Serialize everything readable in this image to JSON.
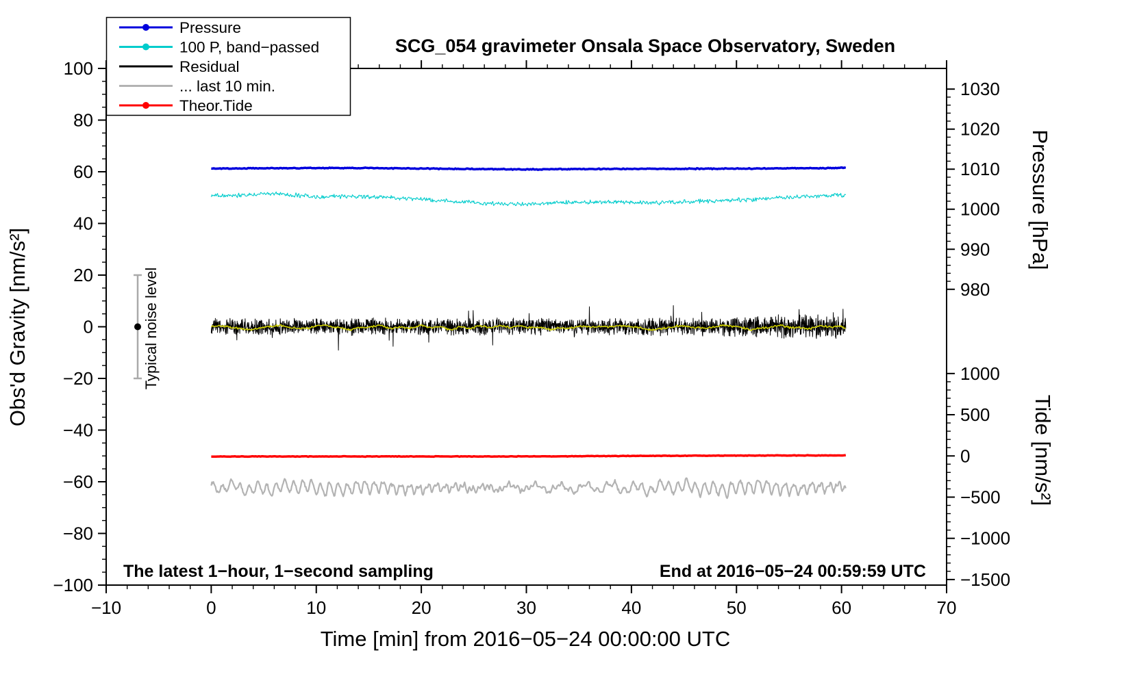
{
  "chart_data": {
    "type": "line",
    "title": "SCG_054 gravimeter Onsala Space Observatory, Sweden",
    "annotations": {
      "sampling": "The latest 1−hour, 1−second sampling",
      "end": "End at 2016−05−24 00:59:59 UTC"
    },
    "axes": {
      "x": {
        "label": "Time [min] from 2016−05−24 00:00:00 UTC",
        "min": -10,
        "max": 70,
        "ticks": [
          -10,
          0,
          10,
          20,
          30,
          40,
          50,
          60,
          70
        ],
        "minor_step": 2
      },
      "y_left": {
        "label": "Obs'd Gravity [nm/s²]",
        "min": -100,
        "max": 100,
        "ticks": [
          -100,
          -80,
          -60,
          -40,
          -20,
          0,
          20,
          40,
          60,
          80,
          100
        ],
        "minor_step": 5
      },
      "pressure": {
        "label": "Pressure [hPa]",
        "ticks": [
          1030,
          1020,
          1010,
          1000,
          990,
          980
        ],
        "minor_step": 2,
        "hpa_ref": 1010,
        "gravity_ref": 61,
        "gravity_per_hpa": 1.55
      },
      "tide": {
        "label": "Tide [nm/s²]",
        "ticks": [
          1000,
          500,
          0,
          -500,
          -1000,
          -1500
        ],
        "minor_step": 100,
        "tide_ref": 0,
        "gravity_ref": -50,
        "gravity_per_unit": 0.0319
      }
    },
    "x_range_data": [
      0,
      60.4
    ],
    "noise_marker": {
      "x": -7,
      "center": 0,
      "half_range": 20,
      "label": "Typical noise level"
    },
    "legend": {
      "items": [
        {
          "label": "Pressure",
          "color": "#0000dd",
          "marker": true
        },
        {
          "label": "100 P, band−passed",
          "color": "#00cccc",
          "marker": true
        },
        {
          "label": "Residual",
          "color": "#000000",
          "marker": false
        },
        {
          "label": "... last 10 min.",
          "color": "#b3b3b3",
          "marker": false
        },
        {
          "label": "Theor.Tide",
          "color": "#ff0000",
          "marker": true
        }
      ]
    },
    "series": [
      {
        "name": "last 10 min residual",
        "color": "#b3b3b3",
        "width": 2.2,
        "samples": 900,
        "trend": [
          [
            0,
            -62.3
          ],
          [
            60.4,
            -62.3
          ]
        ],
        "waves": [
          [
            0.85,
            1.9
          ],
          [
            2.4,
            1.1
          ],
          [
            0.42,
            0.7
          ],
          [
            7.3,
            0.5
          ]
        ],
        "noise": 0.35
      },
      {
        "name": "Theor.Tide",
        "color": "#ff0000",
        "width": 3.5,
        "samples": 400,
        "trend": [
          [
            0,
            -50.2
          ],
          [
            30,
            -50.2
          ],
          [
            40,
            -50.0
          ],
          [
            55,
            -49.8
          ],
          [
            60.4,
            -49.8
          ]
        ],
        "noise": 0.07
      },
      {
        "name": "Pressure",
        "color": "#0000dd",
        "width": 3.5,
        "samples": 500,
        "trend": [
          [
            0,
            61.2
          ],
          [
            12,
            61.5
          ],
          [
            22,
            61.2
          ],
          [
            30,
            60.9
          ],
          [
            38,
            61.1
          ],
          [
            50,
            61.2
          ],
          [
            60.4,
            61.5
          ]
        ],
        "noise": 0.12
      },
      {
        "name": "100 P band-passed",
        "color": "#00cccc",
        "width": 1.1,
        "samples": 900,
        "trend": [
          [
            0,
            50.8
          ],
          [
            3,
            51.0
          ],
          [
            6,
            51.5
          ],
          [
            10,
            50.3
          ],
          [
            14,
            50.5
          ],
          [
            18,
            49.8
          ],
          [
            22,
            48.8
          ],
          [
            26,
            47.7
          ],
          [
            30,
            47.5
          ],
          [
            34,
            48.2
          ],
          [
            38,
            48.3
          ],
          [
            43,
            48.0
          ],
          [
            47,
            48.6
          ],
          [
            51,
            49.2
          ],
          [
            55,
            50.2
          ],
          [
            58,
            50.6
          ],
          [
            60.4,
            51.0
          ]
        ],
        "noise": 0.55
      },
      {
        "name": "Residual",
        "color": "#000000",
        "width": 1,
        "samples": 2600,
        "trend": [
          [
            0,
            0
          ],
          [
            60.4,
            0
          ]
        ],
        "noise": 2.0,
        "noise_growth": 0.5,
        "spike_prob": 0.02,
        "spike_amp": 3.5
      },
      {
        "name": "Residual smoothed",
        "color": "#cfd000",
        "width": 1.6,
        "samples": 700,
        "trend": [
          [
            0,
            -0.2
          ],
          [
            60.4,
            -0.2
          ]
        ],
        "waves": [
          [
            4.8,
            0.5
          ],
          [
            9.7,
            0.4
          ],
          [
            1.9,
            0.3
          ]
        ],
        "noise": 0.25
      }
    ]
  }
}
